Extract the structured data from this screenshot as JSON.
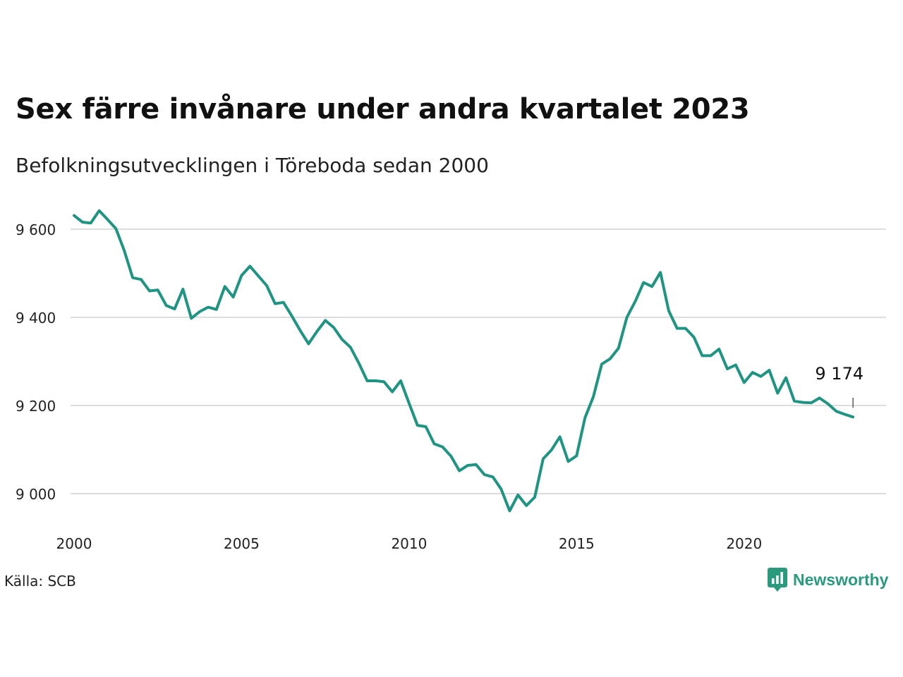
{
  "header": {
    "title": "Sex färre invånare under andra kvartalet 2023",
    "subtitle": "Befolkningsutvecklingen i Töreboda sedan 2000"
  },
  "footer": {
    "source": "Källa: SCB",
    "brand": "Newsworthy"
  },
  "colors": {
    "line": "#1f9482",
    "grid": "#dddddd",
    "brand": "#2a9a7f"
  },
  "chart_data": {
    "type": "line",
    "title": "Sex färre invånare under andra kvartalet 2023",
    "subtitle": "Befolkningsutvecklingen i Töreboda sedan 2000",
    "xlabel": "",
    "ylabel": "",
    "xlim": [
      2000,
      2023.5
    ],
    "ylim": [
      8925,
      9700
    ],
    "grid": true,
    "x_ticks": [
      {
        "value": 2000,
        "label": "2000"
      },
      {
        "value": 2005,
        "label": "2005"
      },
      {
        "value": 2010,
        "label": "2010"
      },
      {
        "value": 2015,
        "label": "2015"
      },
      {
        "value": 2020,
        "label": "2020"
      }
    ],
    "y_ticks": [
      {
        "value": 9000,
        "label": "9 000"
      },
      {
        "value": 9200,
        "label": "9 200"
      },
      {
        "value": 9400,
        "label": "9 400"
      },
      {
        "value": 9600,
        "label": "9 600"
      }
    ],
    "annotation": {
      "x": 2023.25,
      "y": 9174,
      "label": "9 174"
    },
    "series": [
      {
        "x": [
          2000.0,
          2000.25,
          2000.5,
          2000.75,
          2001.0,
          2001.25,
          2001.5,
          2001.75,
          2002.0,
          2002.25,
          2002.5,
          2002.75,
          2003.0,
          2003.25,
          2003.5,
          2003.75,
          2004.0,
          2004.25,
          2004.5,
          2004.75,
          2005.0,
          2005.25,
          2005.5,
          2005.75,
          2006.0,
          2006.25,
          2006.5,
          2006.75,
          2007.0,
          2007.25,
          2007.5,
          2007.75,
          2008.0,
          2008.25,
          2008.5,
          2008.75,
          2009.0,
          2009.25,
          2009.5,
          2009.75,
          2010.0,
          2010.25,
          2010.5,
          2010.75,
          2011.0,
          2011.25,
          2011.5,
          2011.75,
          2012.0,
          2012.25,
          2012.5,
          2012.75,
          2013.0,
          2013.25,
          2013.5,
          2013.75,
          2014.0,
          2014.25,
          2014.5,
          2014.75,
          2015.0,
          2015.25,
          2015.5,
          2015.75,
          2016.0,
          2016.25,
          2016.5,
          2016.75,
          2017.0,
          2017.25,
          2017.5,
          2017.75,
          2018.0,
          2018.25,
          2018.5,
          2018.75,
          2019.0,
          2019.25,
          2019.5,
          2019.75,
          2020.0,
          2020.25,
          2020.5,
          2020.75,
          2021.0,
          2021.25,
          2021.5,
          2021.75,
          2022.0,
          2022.25,
          2022.5,
          2022.75,
          2023.0,
          2023.25
        ],
        "values": [
          9631,
          9616,
          9614,
          9642,
          9622,
          9601,
          9551,
          9490,
          9486,
          9460,
          9462,
          9427,
          9419,
          9464,
          9398,
          9413,
          9423,
          9418,
          9470,
          9446,
          9495,
          9516,
          9494,
          9472,
          9431,
          9434,
          9403,
          9370,
          9340,
          9368,
          9393,
          9377,
          9350,
          9332,
          9296,
          9256,
          9256,
          9254,
          9231,
          9256,
          9205,
          9155,
          9152,
          9113,
          9106,
          9085,
          9052,
          9064,
          9066,
          9043,
          9038,
          9010,
          8961,
          8997,
          8973,
          8992,
          9079,
          9099,
          9129,
          9073,
          9086,
          9172,
          9220,
          9294,
          9306,
          9330,
          9400,
          9436,
          9479,
          9470,
          9502,
          9415,
          9375,
          9375,
          9355,
          9313,
          9313,
          9328,
          9283,
          9292,
          9252,
          9275,
          9266,
          9280,
          9228,
          9263,
          9210,
          9207,
          9206,
          9217,
          9204,
          9187,
          9180,
          9174
        ]
      }
    ]
  }
}
